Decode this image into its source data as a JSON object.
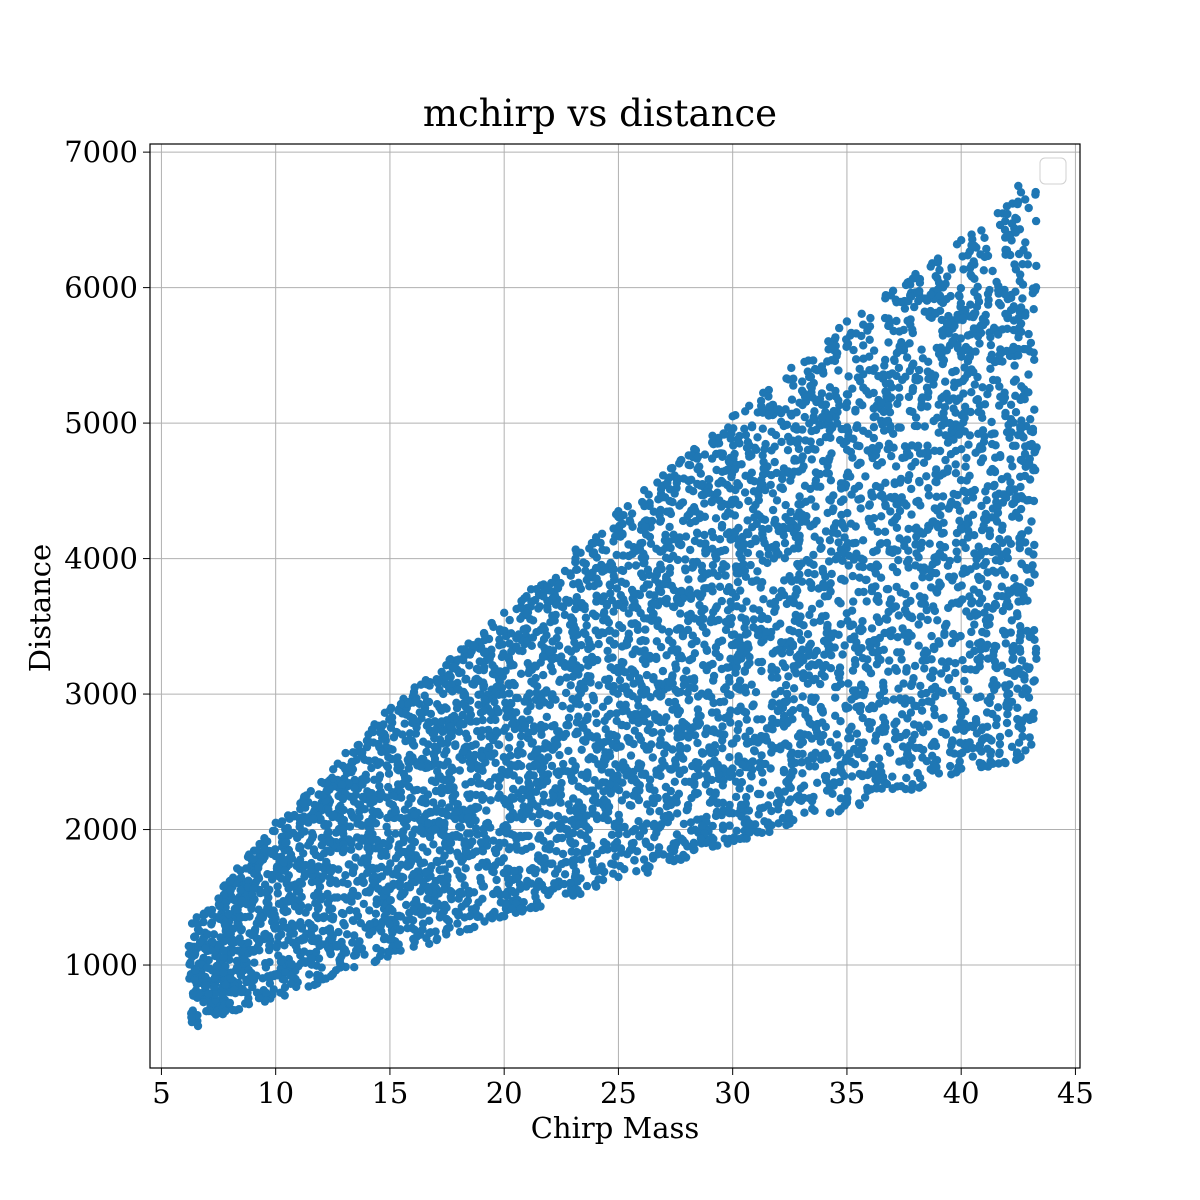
{
  "chart_data": {
    "type": "scatter",
    "title": "mchirp vs distance",
    "xlabel": "Chirp Mass",
    "ylabel": "Distance",
    "xlim": [
      4.5,
      45.2
    ],
    "ylim": [
      240,
      7060
    ],
    "xticks": [
      5,
      10,
      15,
      20,
      25,
      30,
      35,
      40,
      45
    ],
    "yticks": [
      1000,
      2000,
      3000,
      4000,
      5000,
      6000,
      7000
    ],
    "grid": true,
    "legend": {
      "placement": "top-right",
      "entries": []
    },
    "marker_color": "#1f77b4",
    "envelope": {
      "x": [
        6.2,
        7.0,
        8.0,
        10.0,
        15.0,
        20.0,
        25.0,
        30.0,
        35.0,
        40.0,
        42.5,
        43.3
      ],
      "upper": [
        1300,
        1450,
        1650,
        2050,
        2900,
        3600,
        4350,
        5050,
        5750,
        6350,
        6700,
        6750
      ],
      "lower": [
        550,
        600,
        650,
        750,
        1050,
        1350,
        1600,
        1900,
        2150,
        2400,
        2500,
        2650
      ]
    },
    "points_sample": [
      {
        "x": 6.2,
        "y": 1140
      },
      {
        "x": 6.6,
        "y": 1300
      },
      {
        "x": 6.6,
        "y": 550
      },
      {
        "x": 7.0,
        "y": 980
      },
      {
        "x": 7.8,
        "y": 660
      },
      {
        "x": 8.0,
        "y": 1620
      },
      {
        "x": 10.0,
        "y": 2050
      },
      {
        "x": 12.0,
        "y": 2350
      },
      {
        "x": 15.0,
        "y": 2880
      },
      {
        "x": 15.0,
        "y": 1100
      },
      {
        "x": 20.0,
        "y": 3600
      },
      {
        "x": 20.0,
        "y": 1360
      },
      {
        "x": 25.0,
        "y": 4350
      },
      {
        "x": 25.0,
        "y": 1650
      },
      {
        "x": 30.0,
        "y": 5050
      },
      {
        "x": 30.0,
        "y": 1920
      },
      {
        "x": 35.0,
        "y": 5750
      },
      {
        "x": 35.0,
        "y": 2200
      },
      {
        "x": 38.0,
        "y": 6100
      },
      {
        "x": 40.0,
        "y": 6350
      },
      {
        "x": 40.0,
        "y": 2450
      },
      {
        "x": 41.0,
        "y": 2470
      },
      {
        "x": 42.0,
        "y": 6600
      },
      {
        "x": 42.5,
        "y": 6750
      },
      {
        "x": 42.8,
        "y": 6650
      },
      {
        "x": 43.0,
        "y": 2680
      },
      {
        "x": 43.3,
        "y": 4820
      },
      {
        "x": 43.2,
        "y": 4100
      },
      {
        "x": 42.5,
        "y": 5500
      },
      {
        "x": 41.5,
        "y": 3200
      },
      {
        "x": 39.5,
        "y": 5000
      },
      {
        "x": 37.0,
        "y": 2300
      },
      {
        "x": 36.0,
        "y": 4400
      },
      {
        "x": 33.0,
        "y": 3400
      },
      {
        "x": 28.0,
        "y": 2600
      },
      {
        "x": 22.0,
        "y": 2200
      },
      {
        "x": 18.0,
        "y": 1800
      },
      {
        "x": 13.0,
        "y": 1500
      },
      {
        "x": 9.0,
        "y": 1100
      },
      {
        "x": 8.5,
        "y": 800
      }
    ]
  }
}
